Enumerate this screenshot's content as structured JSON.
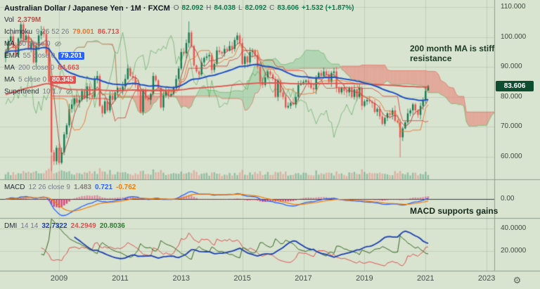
{
  "header": {
    "symbol_title": "Australian Dollar / Japanese Yen · 1M · FXCM",
    "ohlc": {
      "o_label": "O",
      "o": "82.092",
      "h_label": "H",
      "h": "84.038",
      "l_label": "L",
      "l": "82.092",
      "c_label": "C",
      "c": "83.606",
      "change": "+1.532 (+1.87%)"
    }
  },
  "legend": {
    "volume": {
      "label": "Vol",
      "value": "2.379M"
    },
    "ichimoku": {
      "label": "Ichimoku",
      "params": "9 26 52 26",
      "value1": "79.001",
      "value2": "86.713"
    },
    "ma50": {
      "label": "MA",
      "params": "50 close 0"
    },
    "ema55": {
      "label": "EMA",
      "params": "55 close 0",
      "value": "79.201"
    },
    "ma200": {
      "label": "MA",
      "params": "200 close 0",
      "value": "84.663"
    },
    "ma5": {
      "label": "MA",
      "params": "5 close 0",
      "value": "80.345"
    },
    "supertrend": {
      "label": "Supertrend",
      "params": "10 1.7"
    }
  },
  "macd_row": {
    "label": "MACD",
    "params": "12 26 close 9",
    "hist": "1.483",
    "macd": "0.721",
    "signal": "-0.762"
  },
  "dmi_row": {
    "label": "DMI",
    "params": "14 14",
    "adx": "32.7322",
    "plus_di": "24.2949",
    "minus_di": "20.8036"
  },
  "annotations": {
    "main": "200 month MA is stiff resistance",
    "macd": "MACD supports gains"
  },
  "price_axis": {
    "labels": [
      "110.000",
      "100.000",
      "90.000",
      "80.000",
      "70.000",
      "60.000"
    ],
    "values": [
      110,
      100,
      90,
      80,
      70,
      60
    ],
    "last_price": "83.606"
  },
  "macd_axis": {
    "labels": [
      "0.00"
    ],
    "values": [
      0
    ]
  },
  "dmi_axis": {
    "labels": [
      "40.0000",
      "20.0000"
    ],
    "values": [
      40,
      20
    ]
  },
  "time_axis": {
    "labels": [
      "2009",
      "2011",
      "2013",
      "2015",
      "2017",
      "2019",
      "2021",
      "2023"
    ],
    "years": [
      2009,
      2011,
      2013,
      2015,
      2017,
      2019,
      2021,
      2023
    ]
  },
  "icons": {
    "settings": "⚙"
  },
  "theme": {
    "background": "#d8e3d0",
    "grid": "rgba(96,118,96,0.18)",
    "separator": "#8fa18f",
    "up": "#117a4f",
    "down": "#ef5350",
    "vol_up": "rgba(17,122,79,0.35)",
    "vol_down": "rgba(239,83,80,0.35)",
    "cloud_up": "rgba(134,197,144,0.45)",
    "cloud_down": "rgba(236,112,99,0.5)",
    "span_a": "rgba(76,175,80,0.7)",
    "span_b": "rgba(229,87,74,0.7)",
    "tenkan": "#e8752e",
    "kijun": "#d84b40",
    "chikou": "rgba(67,160,71,0.75)",
    "ema55": "#1d4fc4",
    "ma200": "#e0524d",
    "ma5": "#b0413a",
    "macd_hist_pos": "rgba(236,64,122,0.55)",
    "macd_hist_neg": "rgba(216,27,96,0.8)",
    "macd_line": "#2962ff",
    "macd_signal": "#f57c00",
    "adx": "#1a3fae",
    "plus_di": "#e0524d",
    "minus_di": "#33691e",
    "badge_bg": "#0f4d31"
  },
  "chart_data": {
    "type": "candlestick",
    "symbol": "AUD/JPY",
    "timeframe": "1M",
    "title": "Australian Dollar / Japanese Yen, monthly, with Ichimoku cloud, EMA 55, MA 200, MA 5, volume, MACD(12,26,9) and DMI(14,14) subpanes",
    "start_month": "2007-04",
    "xlim": [
      "2007-04",
      "2023-06"
    ],
    "ylim": [
      52,
      113
    ],
    "macd_ylim": [
      -10,
      10
    ],
    "dmi_ylim": [
      2,
      50
    ],
    "first_open": 93.0,
    "closes": [
      95.0,
      98.5,
      100.2,
      96.5,
      94.0,
      99.5,
      104.2,
      99.0,
      100.5,
      96.0,
      98.0,
      91.5,
      97.0,
      100.5,
      102.0,
      101.0,
      94.5,
      85.0,
      61.5,
      58.5,
      63.0,
      58.0,
      61.5,
      67.5,
      70.5,
      76.0,
      77.5,
      79.5,
      78.0,
      79.0,
      82.0,
      79.5,
      83.5,
      80.5,
      80.0,
      86.0,
      87.0,
      77.0,
      74.5,
      78.5,
      75.5,
      80.5,
      79.0,
      81.5,
      83.0,
      82.0,
      83.5,
      86.0,
      89.5,
      87.0,
      86.5,
      84.0,
      82.0,
      75.0,
      82.5,
      79.5,
      79.0,
      81.0,
      87.0,
      85.5,
      83.0,
      76.5,
      80.5,
      82.0,
      80.5,
      81.0,
      83.0,
      86.0,
      89.5,
      95.0,
      94.5,
      98.0,
      101.5,
      97.0,
      90.5,
      88.5,
      87.5,
      91.5,
      93.0,
      93.5,
      94.0,
      89.0,
      91.0,
      95.5,
      95.0,
      94.5,
      96.0,
      95.5,
      97.0,
      96.0,
      99.0,
      100.5,
      98.0,
      91.0,
      93.5,
      91.5,
      95.0,
      95.5,
      94.0,
      90.0,
      85.0,
      84.0,
      86.5,
      88.5,
      87.5,
      86.0,
      80.0,
      85.5,
      81.5,
      80.0,
      76.5,
      77.0,
      78.0,
      77.5,
      80.0,
      84.0,
      84.5,
      85.0,
      85.5,
      84.5,
      83.0,
      82.5,
      86.5,
      88.0,
      87.0,
      88.5,
      87.5,
      85.0,
      88.0,
      88.5,
      83.0,
      81.5,
      83.0,
      82.0,
      81.5,
      83.0,
      80.0,
      82.5,
      80.0,
      83.0,
      77.0,
      78.5,
      79.0,
      78.5,
      78.0,
      75.0,
      76.0,
      73.5,
      71.0,
      73.0,
      74.5,
      74.0,
      75.5,
      72.0,
      71.5,
      66.5,
      69.5,
      71.5,
      74.5,
      75.5,
      77.5,
      75.5,
      74.0,
      77.0,
      79.0,
      82.0,
      83.606
    ],
    "wick_lows": {
      "18": 55.2,
      "155": 59.8
    },
    "wick_highs": {
      "72": 105.2
    },
    "last_candle": {
      "o": 82.092,
      "h": 84.038,
      "l": 82.092,
      "c": 83.606
    }
  }
}
